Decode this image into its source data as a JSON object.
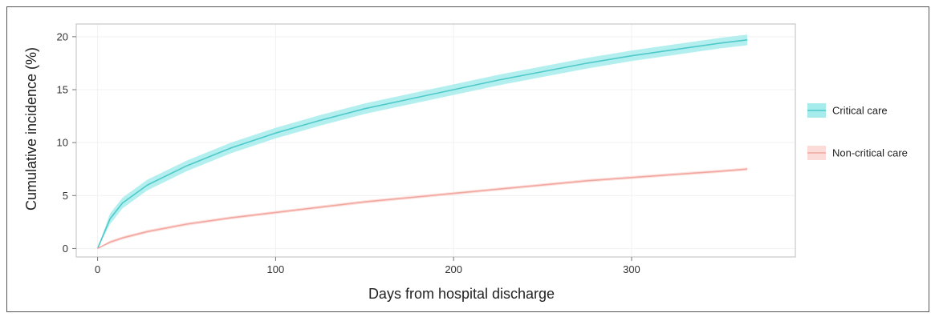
{
  "chart_data": {
    "type": "line",
    "xlabel": "Days from hospital discharge",
    "ylabel": "Cumulative incidence (%)",
    "xlim": [
      -12,
      392
    ],
    "ylim": [
      -0.8,
      21.2
    ],
    "xticks": [
      0,
      100,
      200,
      300
    ],
    "yticks": [
      0,
      5,
      10,
      15,
      20
    ],
    "grid": true,
    "legend_position": "right",
    "series": [
      {
        "name": "Critical care",
        "color": "#4fc9c9",
        "band_color": "#a6ecec",
        "x": [
          0,
          7,
          14,
          28,
          50,
          75,
          100,
          125,
          150,
          175,
          200,
          225,
          250,
          275,
          300,
          325,
          350,
          365
        ],
        "y": [
          0.0,
          2.8,
          4.3,
          6.0,
          7.8,
          9.5,
          10.9,
          12.1,
          13.2,
          14.1,
          15.0,
          15.9,
          16.7,
          17.5,
          18.2,
          18.8,
          19.4,
          19.7
        ],
        "band": 0.5
      },
      {
        "name": "Non-critical care",
        "color": "#f2a8a0",
        "band_color": "#fbdcd8",
        "x": [
          0,
          7,
          14,
          28,
          50,
          75,
          100,
          125,
          150,
          175,
          200,
          225,
          250,
          275,
          300,
          325,
          350,
          365
        ],
        "y": [
          0.0,
          0.6,
          1.0,
          1.6,
          2.3,
          2.9,
          3.4,
          3.9,
          4.4,
          4.8,
          5.2,
          5.6,
          6.0,
          6.4,
          6.7,
          7.0,
          7.3,
          7.5
        ],
        "band": 0.15
      }
    ]
  }
}
